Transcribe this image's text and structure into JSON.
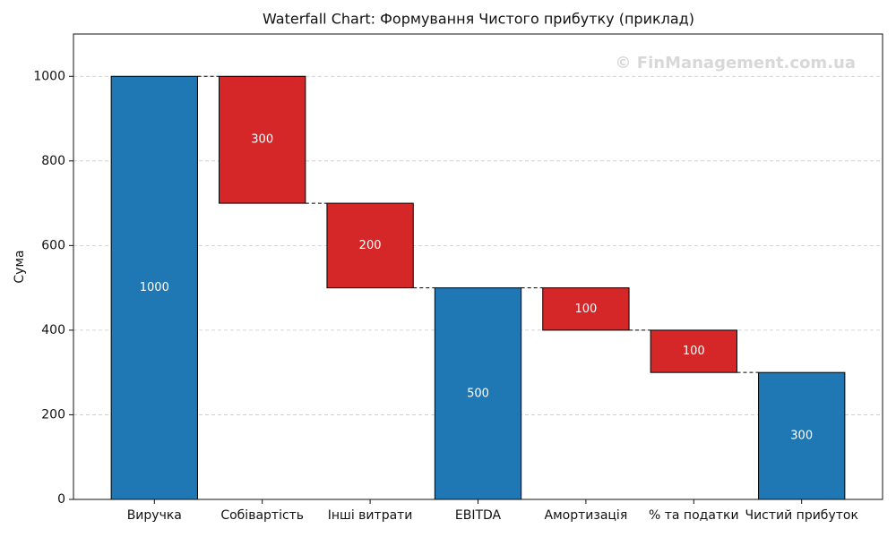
{
  "chart_data": {
    "type": "waterfall",
    "title": "Waterfall Chart: Формування Чистого прибутку (приклад)",
    "y_label": "Сума",
    "watermark": "© FinManagement.com.ua",
    "categories": [
      "Виручка",
      "Собівартість",
      "Інші витрати",
      "EBITDA",
      "Амортизація",
      "% та податки",
      "Чистий прибуток"
    ],
    "measures": [
      "total",
      "decrease",
      "decrease",
      "total",
      "decrease",
      "decrease",
      "total"
    ],
    "values": [
      1000,
      300,
      200,
      500,
      100,
      100,
      300
    ],
    "colors": {
      "total": "#1f77b4",
      "decrease": "#d62728"
    },
    "ylim": [
      0,
      1100
    ],
    "yticks": [
      0,
      200,
      400,
      600,
      800,
      1000
    ],
    "grid": true
  }
}
